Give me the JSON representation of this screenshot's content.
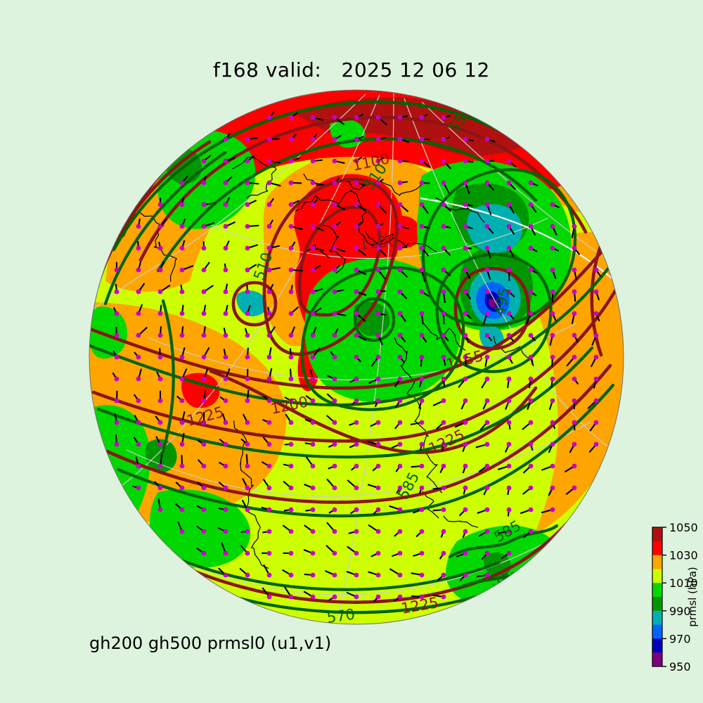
{
  "page": {
    "background": "#ddf3dd"
  },
  "header": {
    "title": "f168 valid:   2025 12 06 12"
  },
  "footer": {
    "label": "gh200 gh500 prmsl0 (u1,v1)"
  },
  "colorbar": {
    "label": "prmsl (hPa)",
    "ticks": [
      "1050",
      "1030",
      "1010",
      "990",
      "970",
      "950"
    ],
    "segment_colors_top_to_bottom": [
      "#b01010",
      "#ff0000",
      "#ffa500",
      "#cdff00",
      "#00d800",
      "#009600",
      "#00b0b0",
      "#0064ff",
      "#0000bb",
      "#7d007d"
    ]
  },
  "map": {
    "field_colors": {
      "gh200_contour": "#8b1515",
      "gh500_contour": "#006400",
      "wind_marker": "#c800c8",
      "coastline": "#000000"
    },
    "contour_labels": [
      {
        "text": "1100",
        "field": "gh200"
      },
      {
        "text": "510",
        "field": "gh500"
      },
      {
        "text": "555",
        "field": "gh500"
      },
      {
        "text": "1100",
        "field": "gh200"
      },
      {
        "text": "510",
        "field": "gh500"
      },
      {
        "text": "495",
        "field": "gh500"
      },
      {
        "text": "1155",
        "field": "gh200"
      },
      {
        "text": "1200",
        "field": "gh200"
      },
      {
        "text": "1225",
        "field": "gh200"
      },
      {
        "text": "1225",
        "field": "gh200"
      },
      {
        "text": "585",
        "field": "gh500"
      },
      {
        "text": "585",
        "field": "gh500"
      },
      {
        "text": "570",
        "field": "gh500"
      },
      {
        "text": "1225",
        "field": "gh200"
      },
      {
        "text": "585",
        "field": "gh500"
      },
      {
        "text": "1225",
        "field": "gh200"
      },
      {
        "text": "585",
        "field": "gh500"
      }
    ]
  },
  "chart_data": {
    "type": "heatmap",
    "title": "f168 valid:   2025 12 06 12",
    "forecast_hour": "f168",
    "valid_time": "2025 12 06 12",
    "subtitle": "gh200 gh500 prmsl0 (u1,v1)",
    "projection": "northern-hemisphere orthographic globe",
    "shaded_field": {
      "name": "prmsl",
      "units": "hPa",
      "range": [
        950,
        1050
      ],
      "contour_interval": 10,
      "colorbar_ticks": [
        1050,
        1030,
        1010,
        990,
        970,
        950
      ],
      "colors_high_to_low": [
        "#b01010",
        "#ff0000",
        "#ffa500",
        "#cdff00",
        "#00d800",
        "#009600",
        "#00b0b0",
        "#0064ff",
        "#0000bb",
        "#7d007d"
      ],
      "colorbar_label": "prmsl (hPa)",
      "legend_position": "right"
    },
    "contour_fields": [
      {
        "name": "gh200",
        "color": "#8b1515",
        "labeled_values": [
          1100,
          1155,
          1200,
          1225
        ]
      },
      {
        "name": "gh500",
        "color": "#006400",
        "labeled_values": [
          495,
          510,
          555,
          570,
          585
        ]
      }
    ],
    "vector_field": {
      "name": "(u1,v1)",
      "marker": "magenta dot with black wind tick",
      "marker_color": "#c800c8"
    },
    "grid": "light gray graticule over globe, pale green page background"
  }
}
